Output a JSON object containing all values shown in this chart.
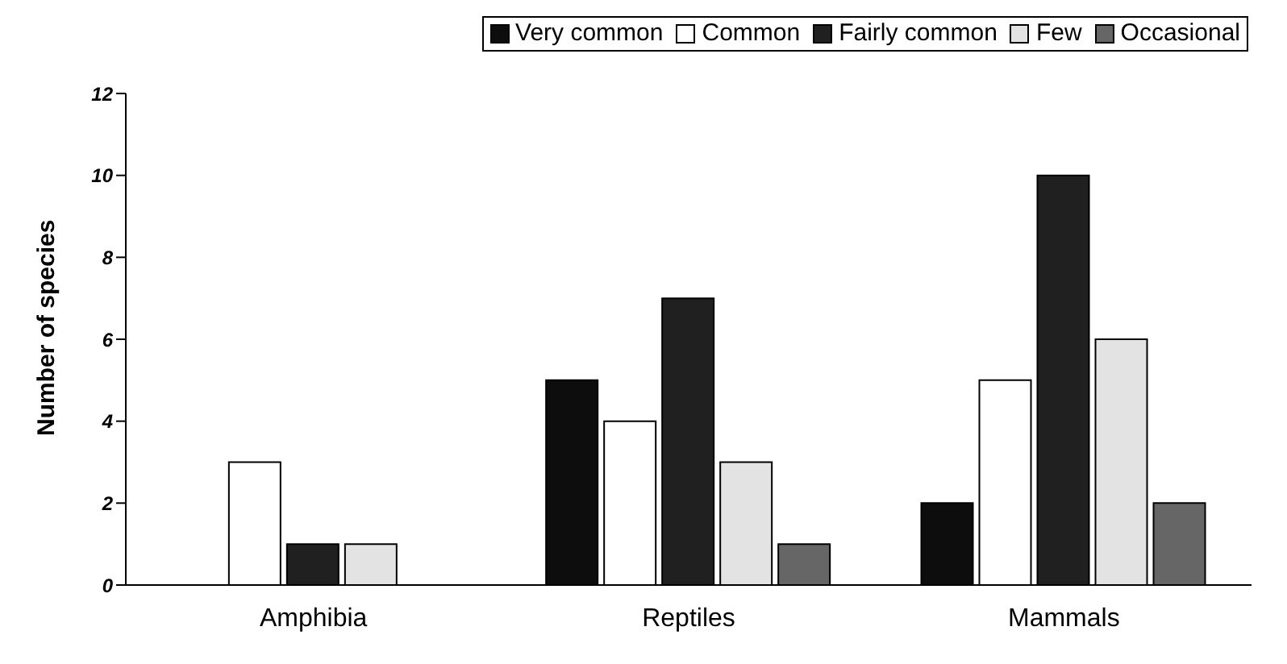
{
  "chart_data": {
    "type": "bar",
    "ylabel": "Number of species",
    "categories": [
      "Amphibia",
      "Reptiles",
      "Mammals"
    ],
    "series": [
      {
        "name": "Very common",
        "color": "#0d0d0d",
        "values": [
          0,
          5,
          2
        ]
      },
      {
        "name": "Common",
        "color": "#ffffff",
        "values": [
          3,
          4,
          5
        ]
      },
      {
        "name": "Fairly common",
        "color": "#202020",
        "values": [
          1,
          7,
          10
        ]
      },
      {
        "name": "Few",
        "color": "#e3e3e3",
        "values": [
          1,
          3,
          6
        ]
      },
      {
        "name": "Occasional",
        "color": "#666666",
        "values": [
          0,
          1,
          2
        ]
      }
    ],
    "ylim": [
      0,
      12
    ],
    "yticks": [
      0,
      2,
      4,
      6,
      8,
      10,
      12
    ],
    "grid": false,
    "legend": "top right"
  }
}
